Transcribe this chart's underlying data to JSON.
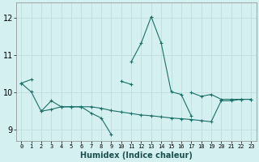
{
  "xlabel": "Humidex (Indice chaleur)",
  "background_color": "#d5f0f0",
  "grid_color": "#c0dede",
  "line_color": "#1a7068",
  "x_values": [
    0,
    1,
    2,
    3,
    4,
    5,
    6,
    7,
    8,
    9,
    10,
    11,
    12,
    13,
    14,
    15,
    16,
    17,
    18,
    19,
    20,
    21,
    22,
    23
  ],
  "line1": [
    10.25,
    10.35,
    null,
    null,
    null,
    null,
    null,
    null,
    null,
    null,
    10.3,
    10.22,
    null,
    null,
    null,
    null,
    null,
    10.0,
    9.9,
    9.95,
    9.82,
    9.82,
    9.82,
    9.82
  ],
  "line2": [
    10.25,
    10.02,
    9.5,
    9.78,
    9.62,
    9.62,
    9.62,
    9.45,
    9.32,
    8.88,
    null,
    null,
    null,
    null,
    null,
    null,
    null,
    null,
    null,
    null,
    null,
    null,
    null,
    null
  ],
  "line3": [
    null,
    null,
    null,
    null,
    null,
    null,
    null,
    null,
    null,
    null,
    null,
    10.82,
    11.32,
    12.03,
    11.32,
    10.02,
    9.95,
    9.38,
    null,
    null,
    null,
    null,
    null,
    null
  ],
  "line4": [
    null,
    null,
    9.5,
    9.55,
    9.62,
    9.62,
    9.62,
    9.62,
    9.58,
    9.52,
    9.48,
    9.44,
    9.4,
    9.38,
    9.35,
    9.32,
    9.3,
    9.28,
    9.25,
    9.22,
    9.78,
    9.78,
    9.82,
    9.82
  ],
  "ylim": [
    8.7,
    12.4
  ],
  "yticks": [
    9,
    10,
    11,
    12
  ],
  "xlim": [
    -0.5,
    23.5
  ],
  "xticks": [
    0,
    1,
    2,
    3,
    4,
    5,
    6,
    7,
    8,
    9,
    10,
    11,
    12,
    13,
    14,
    15,
    16,
    17,
    18,
    19,
    20,
    21,
    22,
    23
  ]
}
